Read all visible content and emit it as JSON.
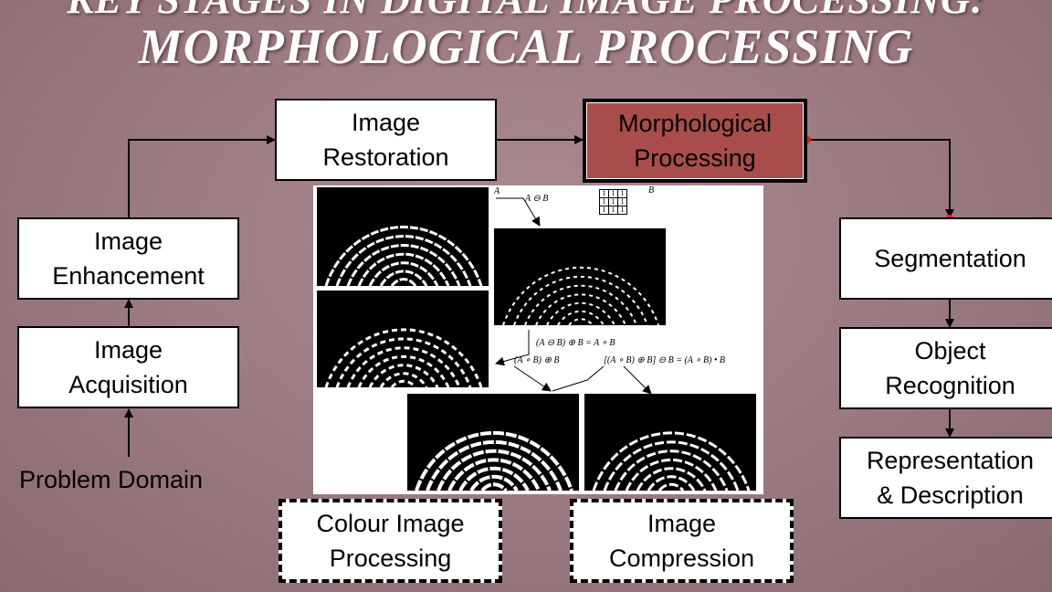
{
  "title": {
    "line1": "KEY STAGES IN DIGITAL IMAGE PROCESSING:",
    "line2": "MORPHOLOGICAL PROCESSING"
  },
  "stages": {
    "image_acquisition": "Image\nAcquisition",
    "image_enhancement": "Image\nEnhancement",
    "image_restoration": "Image\nRestoration",
    "morphological_processing": "Morphological\nProcessing",
    "segmentation": "Segmentation",
    "object_recognition": "Object\nRecognition",
    "representation_description": "Representation\n& Description",
    "colour_image_processing": "Colour Image\nProcessing",
    "image_compression": "Image\nCompression"
  },
  "problem_domain": "Problem Domain",
  "colors": {
    "active_stage": "#a84d4b",
    "background": "#9a7a80"
  },
  "figure": {
    "label_A": "A",
    "label_B": "B",
    "erosion": "A ⊖ B",
    "grid": [
      "1",
      "1",
      "1",
      "1",
      "1",
      "1",
      "1",
      "1",
      "1"
    ],
    "opening": "(A ⊖ B) ⊕ B = A ∘ B",
    "dilate_open": "(A ∘ B) ⊕ B",
    "closing_of_opening": "[(A ∘ B) ⊕ B] ⊖ B = (A ∘ B) • B"
  }
}
